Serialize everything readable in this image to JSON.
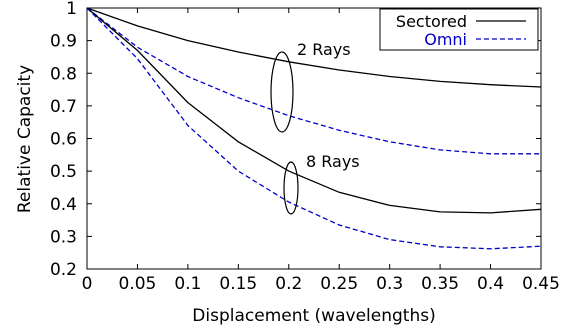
{
  "chart_data": {
    "type": "line",
    "xlabel": "Displacement (wavelengths)",
    "ylabel": "Relative Capacity",
    "xlim": [
      0,
      0.45
    ],
    "ylim": [
      0.2,
      1
    ],
    "xticks": [
      0,
      0.05,
      0.1,
      0.15,
      0.2,
      0.25,
      0.3,
      0.35,
      0.4,
      0.45
    ],
    "xtick_labels": [
      "0",
      "0.05",
      "0.1",
      "0.15",
      "0.2",
      "0.25",
      "0.3",
      "0.35",
      "0.4",
      "0.45"
    ],
    "yticks": [
      0.2,
      0.3,
      0.4,
      0.5,
      0.6,
      0.7,
      0.8,
      0.9,
      1
    ],
    "ytick_labels": [
      "0.2",
      "0.3",
      "0.4",
      "0.5",
      "0.6",
      "0.7",
      "0.8",
      "0.9",
      "1"
    ],
    "grid": false,
    "legend_position": "top-right",
    "legend": [
      {
        "label": "Sectored",
        "color": "#000000",
        "dash": "solid"
      },
      {
        "label": "Omni",
        "color": "#0000cc",
        "dash": "dashed"
      }
    ],
    "annotations": [
      {
        "text": "2 Rays"
      },
      {
        "text": "8 Rays"
      }
    ],
    "series": [
      {
        "legend": "Sectored",
        "group": "2 Rays",
        "color": "#000000",
        "dash": "solid",
        "x": [
          0,
          0.05,
          0.1,
          0.15,
          0.2,
          0.25,
          0.3,
          0.35,
          0.4,
          0.45
        ],
        "y": [
          1.0,
          0.945,
          0.9,
          0.865,
          0.835,
          0.81,
          0.79,
          0.775,
          0.765,
          0.758
        ]
      },
      {
        "legend": "Omni",
        "group": "2 Rays",
        "color": "#0000cc",
        "dash": "dashed",
        "x": [
          0,
          0.05,
          0.1,
          0.15,
          0.2,
          0.25,
          0.3,
          0.35,
          0.4,
          0.45
        ],
        "y": [
          1.0,
          0.88,
          0.79,
          0.725,
          0.67,
          0.625,
          0.59,
          0.565,
          0.553,
          0.553
        ]
      },
      {
        "legend": "Sectored",
        "group": "8 Rays",
        "color": "#000000",
        "dash": "solid",
        "x": [
          0,
          0.05,
          0.1,
          0.15,
          0.2,
          0.25,
          0.3,
          0.35,
          0.4,
          0.45
        ],
        "y": [
          1.0,
          0.87,
          0.71,
          0.59,
          0.5,
          0.435,
          0.395,
          0.375,
          0.372,
          0.383
        ]
      },
      {
        "legend": "Omni",
        "group": "8 Rays",
        "color": "#0000cc",
        "dash": "dashed",
        "x": [
          0,
          0.05,
          0.1,
          0.15,
          0.2,
          0.25,
          0.3,
          0.35,
          0.4,
          0.45
        ],
        "y": [
          1.0,
          0.845,
          0.64,
          0.5,
          0.405,
          0.335,
          0.29,
          0.268,
          0.262,
          0.27
        ]
      }
    ]
  }
}
